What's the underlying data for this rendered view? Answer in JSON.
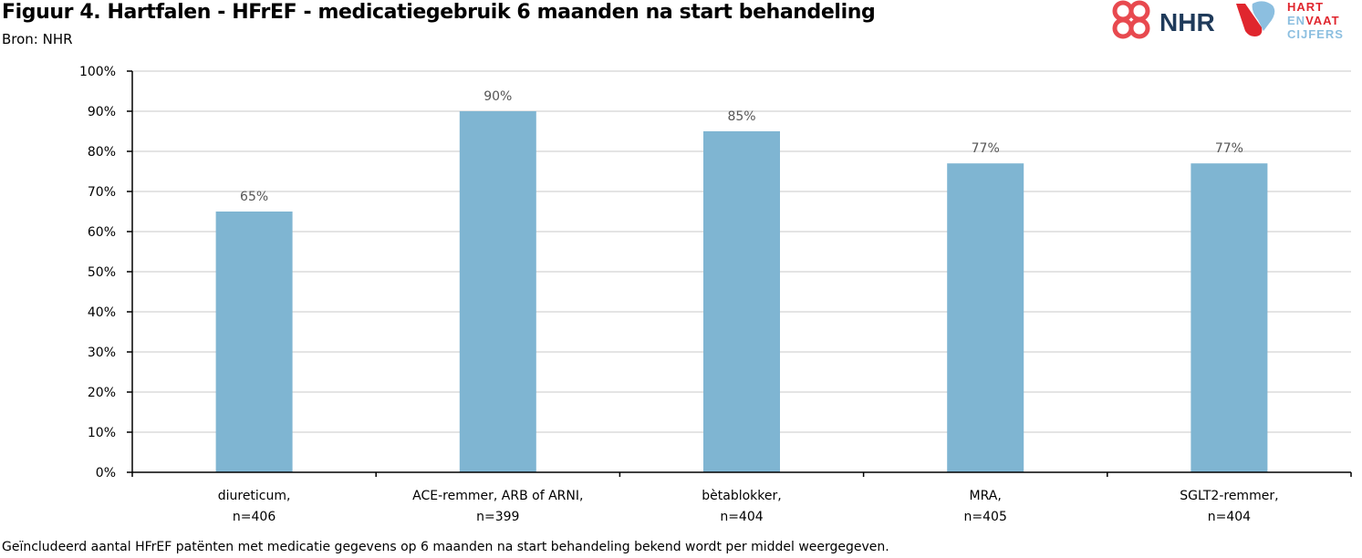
{
  "header": {
    "title": "Figuur 4. Hartfalen - HFrEF - medicatiegebruik 6 maanden na start behandeling",
    "source": "Bron: NHR"
  },
  "logos": {
    "nhr_text": "NHR",
    "hartvaat_line1": "HART",
    "hartvaat_line2_a": "EN",
    "hartvaat_line2_b": "VAAT",
    "hartvaat_line3": "CIJFERS"
  },
  "footnote": "Geïncludeerd aantal HFrEF patënten met medicatie gegevens op 6 maanden na start behandeling bekend wordt per middel weergegeven.",
  "colors": {
    "bar": "#7fb5d2",
    "grid": "#c8c8c8",
    "axis": "#000000",
    "nhr_red": "#e8494f",
    "nhr_navy": "#1f3a5a",
    "hv_red": "#e0262e",
    "hv_blue": "#8cbfe0"
  },
  "chart_data": {
    "type": "bar",
    "categories": [
      [
        "diureticum,",
        "n=406"
      ],
      [
        "ACE-remmer, ARB of ARNI,",
        "n=399"
      ],
      [
        "bètablokker,",
        "n=404"
      ],
      [
        "MRA,",
        "n=405"
      ],
      [
        "SGLT2-remmer,",
        "n=404"
      ]
    ],
    "values": [
      65,
      90,
      85,
      77,
      77
    ],
    "data_labels": [
      "65%",
      "90%",
      "85%",
      "77%",
      "77%"
    ],
    "y_ticks": [
      "0%",
      "10%",
      "20%",
      "30%",
      "40%",
      "50%",
      "60%",
      "70%",
      "80%",
      "90%",
      "100%"
    ],
    "ylim": [
      0,
      100
    ],
    "grid": true,
    "legend": "none"
  }
}
